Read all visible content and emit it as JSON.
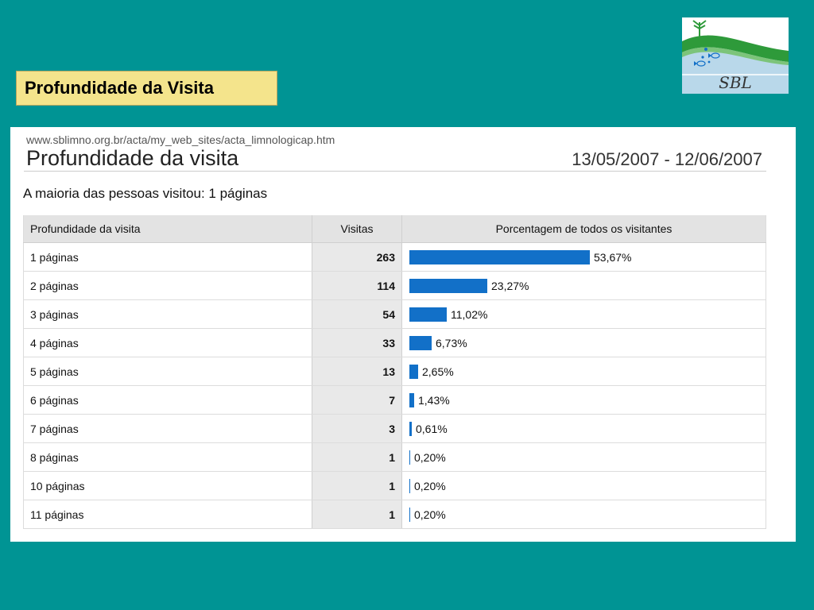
{
  "slide_title": "Profundidade da Visita",
  "logo": {
    "text": "SBL",
    "icon": "sbl-logo-plant-fish"
  },
  "report": {
    "url": "www.sblimno.org.br/acta/my_web_sites/acta_limnologicap.htm",
    "title": "Profundidade da visita",
    "date_range": "13/05/2007 - 12/06/2007",
    "summary": "A maioria das pessoas visitou: 1 páginas"
  },
  "colors": {
    "background": "#009494",
    "bar": "#1270c8",
    "title_box": "#f4e48c"
  },
  "chart_data": {
    "type": "table",
    "columns": [
      "Profundidade da visita",
      "Visitas",
      "Porcentagem de todos os visitantes"
    ],
    "rows": [
      {
        "label": "1 páginas",
        "visits": 263,
        "percent": 53.67,
        "percent_text": "53,67%"
      },
      {
        "label": "2 páginas",
        "visits": 114,
        "percent": 23.27,
        "percent_text": "23,27%"
      },
      {
        "label": "3 páginas",
        "visits": 54,
        "percent": 11.02,
        "percent_text": "11,02%"
      },
      {
        "label": "4 páginas",
        "visits": 33,
        "percent": 6.73,
        "percent_text": "6,73%"
      },
      {
        "label": "5 páginas",
        "visits": 13,
        "percent": 2.65,
        "percent_text": "2,65%"
      },
      {
        "label": "6 páginas",
        "visits": 7,
        "percent": 1.43,
        "percent_text": "1,43%"
      },
      {
        "label": "7 páginas",
        "visits": 3,
        "percent": 0.61,
        "percent_text": "0,61%"
      },
      {
        "label": "8 páginas",
        "visits": 1,
        "percent": 0.2,
        "percent_text": "0,20%"
      },
      {
        "label": "10 páginas",
        "visits": 1,
        "percent": 0.2,
        "percent_text": "0,20%"
      },
      {
        "label": "11 páginas",
        "visits": 1,
        "percent": 0.2,
        "percent_text": "0,20%"
      }
    ]
  }
}
